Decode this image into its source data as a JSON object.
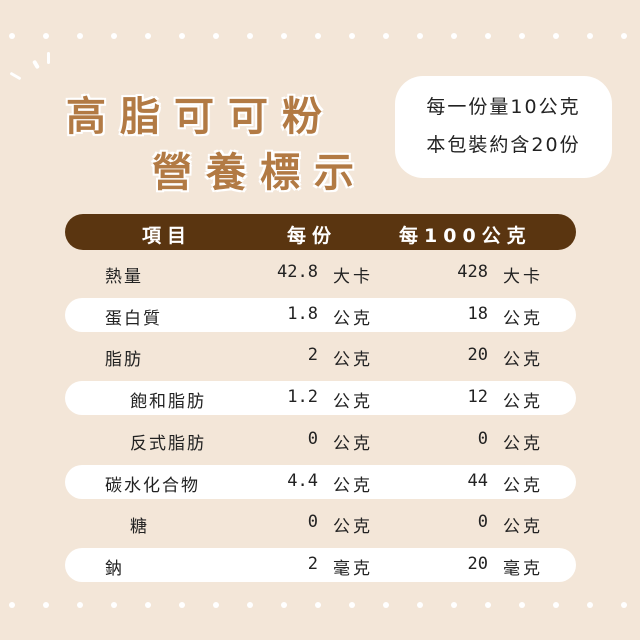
{
  "title": {
    "line1": "高脂可可粉",
    "line2": "營養標示"
  },
  "info": {
    "line1": "每一份量10公克",
    "line2": "本包裝約含20份"
  },
  "header": {
    "item": "項目",
    "per_serving": "每份",
    "per_100g": "每100公克"
  },
  "rows": [
    {
      "label": "熱量",
      "indent": false,
      "serving": "42.8",
      "serving_unit": "大卡",
      "per100": "428",
      "per100_unit": "大卡"
    },
    {
      "label": "蛋白質",
      "indent": false,
      "serving": "1.8",
      "serving_unit": "公克",
      "per100": "18",
      "per100_unit": "公克"
    },
    {
      "label": "脂肪",
      "indent": false,
      "serving": "2",
      "serving_unit": "公克",
      "per100": "20",
      "per100_unit": "公克"
    },
    {
      "label": "飽和脂肪",
      "indent": true,
      "serving": "1.2",
      "serving_unit": "公克",
      "per100": "12",
      "per100_unit": "公克"
    },
    {
      "label": "反式脂肪",
      "indent": true,
      "serving": "0",
      "serving_unit": "公克",
      "per100": "0",
      "per100_unit": "公克"
    },
    {
      "label": "碳水化合物",
      "indent": false,
      "serving": "4.4",
      "serving_unit": "公克",
      "per100": "44",
      "per100_unit": "公克"
    },
    {
      "label": "糖",
      "indent": true,
      "serving": "0",
      "serving_unit": "公克",
      "per100": "0",
      "per100_unit": "公克"
    },
    {
      "label": "鈉",
      "indent": false,
      "serving": "2",
      "serving_unit": "毫克",
      "per100": "20",
      "per100_unit": "毫克"
    }
  ],
  "colors": {
    "background": "#f3e6d8",
    "header": "#5a3510",
    "title": "#b27a44"
  }
}
